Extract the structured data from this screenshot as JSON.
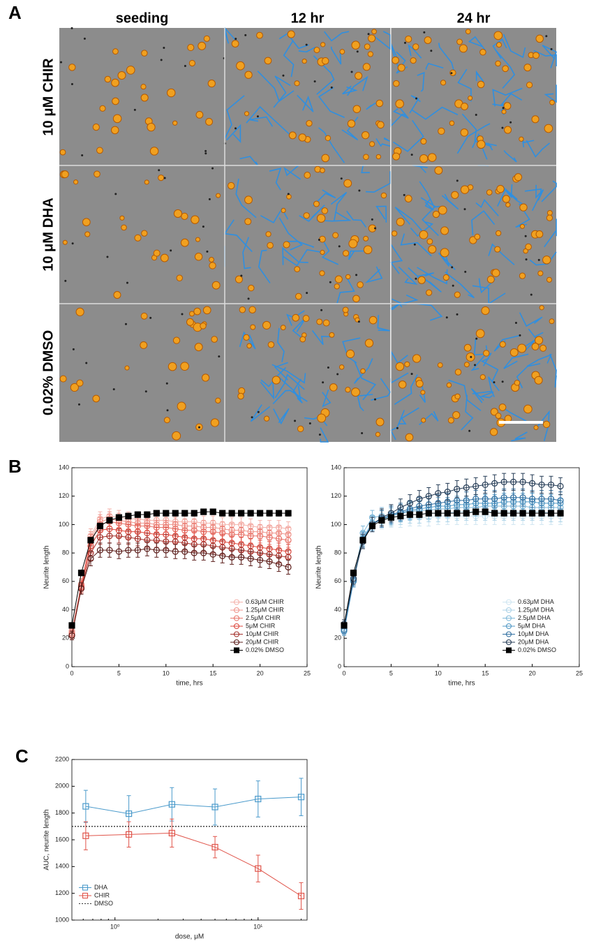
{
  "panel_labels": {
    "a": "A",
    "b": "B",
    "c": "C"
  },
  "panel_a": {
    "columns": [
      "seeding",
      "12 hr",
      "24 hr"
    ],
    "rows": [
      "10 μM CHIR",
      "10 μM DHA",
      "0.02% DMSO"
    ]
  },
  "chart_data": [
    {
      "type": "line",
      "xlabel": "time, hrs",
      "ylabel": "Neurite length",
      "x": [
        0,
        1,
        2,
        3,
        4,
        5,
        6,
        7,
        8,
        9,
        10,
        11,
        12,
        13,
        14,
        15,
        16,
        17,
        18,
        19,
        20,
        21,
        22,
        23
      ],
      "xlim": [
        0,
        25
      ],
      "xticks": [
        0,
        5,
        10,
        15,
        20,
        25
      ],
      "ylim": [
        0,
        140
      ],
      "yticks": [
        0,
        20,
        40,
        60,
        80,
        100,
        120,
        140
      ],
      "legend": "lower-right",
      "grid": false,
      "series": [
        {
          "name": "0.63μM CHIR",
          "color": "#f4b2ab",
          "marker": "circle",
          "filled": false,
          "values": [
            24,
            58,
            92,
            104,
            106,
            105,
            104,
            104,
            103,
            103,
            103,
            102,
            102,
            102,
            101,
            101,
            100,
            100,
            100,
            99,
            98,
            98,
            98,
            97
          ],
          "errors": [
            3,
            4,
            5,
            5,
            5,
            5,
            5,
            5,
            5,
            5,
            5,
            5,
            5,
            5,
            5,
            5,
            5,
            5,
            5,
            5,
            5,
            5,
            5,
            5
          ]
        },
        {
          "name": "1.25μM CHIR",
          "color": "#ef958c",
          "marker": "circle",
          "filled": false,
          "values": [
            25,
            58,
            90,
            102,
            104,
            103,
            102,
            101,
            101,
            100,
            100,
            100,
            99,
            99,
            98,
            98,
            97,
            96,
            96,
            95,
            95,
            94,
            94,
            93
          ],
          "errors": [
            3,
            4,
            5,
            5,
            5,
            5,
            5,
            5,
            5,
            5,
            5,
            5,
            5,
            5,
            5,
            5,
            5,
            5,
            5,
            5,
            5,
            5,
            5,
            5
          ]
        },
        {
          "name": "2.5μM CHIR",
          "color": "#e8746a",
          "marker": "circle",
          "filled": false,
          "values": [
            23,
            57,
            88,
            100,
            102,
            101,
            100,
            99,
            99,
            98,
            98,
            97,
            96,
            96,
            95,
            95,
            94,
            93,
            93,
            92,
            92,
            91,
            90,
            89
          ],
          "errors": [
            3,
            4,
            5,
            5,
            5,
            5,
            5,
            5,
            5,
            5,
            5,
            5,
            5,
            5,
            5,
            5,
            5,
            5,
            5,
            5,
            5,
            5,
            5,
            5
          ]
        },
        {
          "name": "5μM CHIR",
          "color": "#dc463b",
          "marker": "circle",
          "filled": false,
          "values": [
            22,
            56,
            85,
            96,
            97,
            96,
            95,
            95,
            94,
            93,
            93,
            92,
            91,
            90,
            90,
            89,
            88,
            87,
            86,
            85,
            84,
            83,
            82,
            81
          ],
          "errors": [
            3,
            4,
            5,
            5,
            5,
            5,
            5,
            5,
            5,
            5,
            5,
            5,
            5,
            5,
            5,
            5,
            5,
            5,
            5,
            5,
            5,
            5,
            5,
            5
          ]
        },
        {
          "name": "10μM CHIR",
          "color": "#a3302a",
          "marker": "circle",
          "filled": false,
          "values": [
            22,
            55,
            80,
            91,
            92,
            92,
            91,
            90,
            89,
            89,
            88,
            88,
            87,
            86,
            86,
            85,
            84,
            83,
            82,
            81,
            80,
            79,
            78,
            77
          ],
          "errors": [
            3,
            4,
            5,
            5,
            5,
            5,
            5,
            5,
            5,
            5,
            5,
            5,
            5,
            5,
            5,
            5,
            5,
            5,
            5,
            5,
            5,
            5,
            5,
            5
          ]
        },
        {
          "name": "20μM CHIR",
          "color": "#5a1c19",
          "marker": "circle",
          "filled": false,
          "values": [
            22,
            55,
            76,
            82,
            82,
            81,
            82,
            82,
            83,
            82,
            82,
            81,
            81,
            80,
            80,
            79,
            78,
            77,
            77,
            76,
            75,
            74,
            72,
            70
          ],
          "errors": [
            3,
            4,
            5,
            5,
            5,
            5,
            5,
            5,
            5,
            5,
            5,
            5,
            5,
            5,
            5,
            5,
            5,
            5,
            5,
            5,
            5,
            5,
            5,
            5
          ]
        },
        {
          "name": "0.02% DMSO",
          "color": "#000000",
          "marker": "square",
          "filled": true,
          "values": [
            29,
            66,
            89,
            99,
            103,
            105,
            106,
            107,
            107,
            108,
            108,
            108,
            108,
            108,
            109,
            109,
            108,
            108,
            108,
            108,
            108,
            108,
            108,
            108
          ],
          "errors": [
            2,
            2,
            2,
            2,
            2,
            2,
            2,
            2,
            2,
            2,
            2,
            2,
            2,
            2,
            2,
            2,
            2,
            2,
            2,
            2,
            2,
            2,
            2,
            2
          ]
        }
      ]
    },
    {
      "type": "line",
      "xlabel": "time, hrs",
      "ylabel": "Neurite length",
      "x": [
        0,
        1,
        2,
        3,
        4,
        5,
        6,
        7,
        8,
        9,
        10,
        11,
        12,
        13,
        14,
        15,
        16,
        17,
        18,
        19,
        20,
        21,
        22,
        23
      ],
      "xlim": [
        0,
        25
      ],
      "xticks": [
        0,
        5,
        10,
        15,
        20,
        25
      ],
      "ylim": [
        0,
        140
      ],
      "yticks": [
        0,
        20,
        40,
        60,
        80,
        100,
        120,
        140
      ],
      "legend": "lower-right",
      "grid": false,
      "series": [
        {
          "name": "0.63μM DHA",
          "color": "#cfe5f1",
          "marker": "circle",
          "filled": false,
          "values": [
            26,
            60,
            90,
            101,
            103,
            104,
            104,
            105,
            105,
            105,
            106,
            106,
            106,
            106,
            106,
            106,
            106,
            106,
            106,
            106,
            106,
            106,
            106,
            106
          ],
          "errors": [
            3,
            4,
            5,
            5,
            6,
            6,
            6,
            6,
            6,
            6,
            6,
            6,
            6,
            6,
            6,
            6,
            6,
            6,
            6,
            6,
            6,
            6,
            6,
            6
          ]
        },
        {
          "name": "1.25μM DHA",
          "color": "#abd2e7",
          "marker": "circle",
          "filled": false,
          "values": [
            27,
            61,
            91,
            101,
            104,
            105,
            106,
            107,
            107,
            108,
            108,
            108,
            109,
            109,
            109,
            109,
            109,
            109,
            109,
            109,
            109,
            109,
            108,
            108
          ],
          "errors": [
            3,
            4,
            5,
            5,
            6,
            6,
            6,
            6,
            6,
            6,
            6,
            6,
            6,
            6,
            6,
            6,
            6,
            6,
            6,
            6,
            6,
            6,
            6,
            6
          ]
        },
        {
          "name": "2.5μM DHA",
          "color": "#80b9d9",
          "marker": "circle",
          "filled": false,
          "values": [
            26,
            62,
            94,
            105,
            106,
            107,
            108,
            109,
            110,
            110,
            111,
            111,
            112,
            112,
            112,
            113,
            113,
            113,
            113,
            113,
            112,
            112,
            112,
            112
          ],
          "errors": [
            3,
            4,
            5,
            5,
            6,
            6,
            6,
            6,
            6,
            6,
            6,
            6,
            6,
            6,
            6,
            6,
            6,
            6,
            6,
            6,
            6,
            6,
            6,
            6
          ]
        },
        {
          "name": "5μM DHA",
          "color": "#4f97c4",
          "marker": "circle",
          "filled": false,
          "values": [
            25,
            60,
            90,
            101,
            104,
            106,
            108,
            110,
            111,
            112,
            113,
            113,
            114,
            114,
            115,
            115,
            115,
            116,
            116,
            116,
            116,
            115,
            115,
            115
          ],
          "errors": [
            3,
            4,
            5,
            5,
            6,
            6,
            6,
            6,
            6,
            6,
            6,
            6,
            6,
            6,
            6,
            6,
            6,
            6,
            6,
            6,
            6,
            6,
            6,
            6
          ]
        },
        {
          "name": "10μM DHA",
          "color": "#2e6ea0",
          "marker": "circle",
          "filled": false,
          "values": [
            26,
            61,
            89,
            100,
            104,
            107,
            109,
            111,
            113,
            114,
            115,
            116,
            117,
            117,
            118,
            118,
            118,
            119,
            119,
            119,
            118,
            118,
            118,
            117
          ],
          "errors": [
            3,
            4,
            5,
            5,
            6,
            6,
            6,
            6,
            6,
            6,
            6,
            6,
            6,
            6,
            6,
            6,
            6,
            6,
            6,
            6,
            6,
            6,
            6,
            6
          ]
        },
        {
          "name": "20μM DHA",
          "color": "#243b55",
          "marker": "circle",
          "filled": false,
          "values": [
            30,
            62,
            88,
            100,
            105,
            108,
            112,
            115,
            118,
            120,
            122,
            123,
            125,
            126,
            127,
            128,
            129,
            130,
            130,
            130,
            129,
            128,
            128,
            127
          ],
          "errors": [
            3,
            4,
            5,
            5,
            6,
            6,
            6,
            6,
            6,
            6,
            6,
            6,
            6,
            6,
            6,
            6,
            6,
            6,
            6,
            6,
            6,
            6,
            6,
            6
          ]
        },
        {
          "name": "0.02% DMSO",
          "color": "#000000",
          "marker": "square",
          "filled": true,
          "values": [
            29,
            66,
            89,
            99,
            103,
            105,
            106,
            107,
            107,
            108,
            108,
            108,
            108,
            108,
            109,
            109,
            108,
            108,
            108,
            108,
            108,
            108,
            108,
            108
          ],
          "errors": [
            2,
            2,
            2,
            2,
            2,
            2,
            2,
            2,
            2,
            2,
            2,
            2,
            2,
            2,
            2,
            2,
            2,
            2,
            2,
            2,
            2,
            2,
            2,
            2
          ]
        }
      ]
    },
    {
      "type": "line",
      "xlabel": "dose, μM",
      "ylabel": "AUC, neurite length",
      "xscale": "log",
      "x": [
        0.625,
        1.25,
        2.5,
        5,
        10,
        20
      ],
      "xlim": [
        0.5,
        22
      ],
      "xticks": [
        {
          "value": 1,
          "label": "10⁰"
        },
        {
          "value": 10,
          "label": "10¹"
        }
      ],
      "ylim": [
        1000,
        2200
      ],
      "yticks": [
        1000,
        1200,
        1400,
        1600,
        1800,
        2000,
        2200
      ],
      "legend": "lower-left",
      "grid": false,
      "series": [
        {
          "name": "DHA",
          "color": "#4a9acb",
          "marker": "square",
          "filled": false,
          "values": [
            1850,
            1795,
            1865,
            1845,
            1905,
            1920
          ],
          "errors": [
            120,
            135,
            125,
            135,
            135,
            140
          ]
        },
        {
          "name": "CHIR",
          "color": "#e0544a",
          "marker": "square",
          "filled": false,
          "values": [
            1630,
            1640,
            1650,
            1545,
            1385,
            1180
          ],
          "errors": [
            105,
            95,
            105,
            80,
            100,
            100
          ]
        },
        {
          "name": "DMSO",
          "color": "#333333",
          "dash": "dotted",
          "hline": 1700
        }
      ]
    }
  ]
}
